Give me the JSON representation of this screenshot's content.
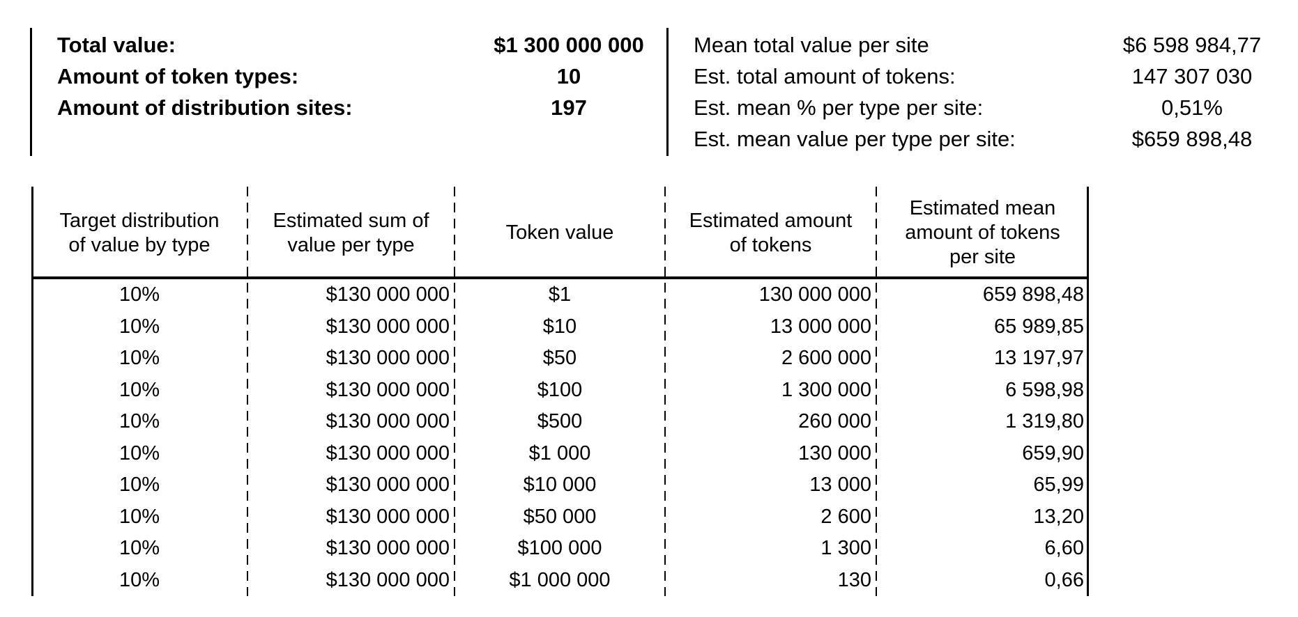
{
  "colors": {
    "text": "#000000",
    "background": "#ffffff",
    "line": "#000000"
  },
  "summary_left": {
    "rows": [
      {
        "label": "Total value:",
        "value": "$1 300 000 000"
      },
      {
        "label": "Amount of token types:",
        "value": "10"
      },
      {
        "label": "Amount of distribution sites:",
        "value": "197"
      }
    ]
  },
  "summary_right": {
    "rows": [
      {
        "label": "Mean total value per site",
        "value": "$6 598 984,77"
      },
      {
        "label": "Est. total amount of tokens:",
        "value": "147 307 030"
      },
      {
        "label": "Est. mean % per type per site:",
        "value": "0,51%"
      },
      {
        "label": "Est. mean value per type per site:",
        "value": "$659 898,48"
      }
    ]
  },
  "table": {
    "headers": [
      "Target distribution\nof value by type",
      "Estimated sum of\nvalue per type",
      "Token value",
      "Estimated amount\nof tokens",
      "Estimated mean\namount of tokens\nper site"
    ],
    "rows": [
      [
        "10%",
        "$130 000 000",
        "$1",
        "130 000 000",
        "659 898,48"
      ],
      [
        "10%",
        "$130 000 000",
        "$10",
        "13 000 000",
        "65 989,85"
      ],
      [
        "10%",
        "$130 000 000",
        "$50",
        "2 600 000",
        "13 197,97"
      ],
      [
        "10%",
        "$130 000 000",
        "$100",
        "1 300 000",
        "6 598,98"
      ],
      [
        "10%",
        "$130 000 000",
        "$500",
        "260 000",
        "1 319,80"
      ],
      [
        "10%",
        "$130 000 000",
        "$1 000",
        "130 000",
        "659,90"
      ],
      [
        "10%",
        "$130 000 000",
        "$10 000",
        "13 000",
        "65,99"
      ],
      [
        "10%",
        "$130 000 000",
        "$50 000",
        "2 600",
        "13,20"
      ],
      [
        "10%",
        "$130 000 000",
        "$100 000",
        "1 300",
        "6,60"
      ],
      [
        "10%",
        "$130 000 000",
        "$1 000 000",
        "130",
        "0,66"
      ]
    ]
  }
}
